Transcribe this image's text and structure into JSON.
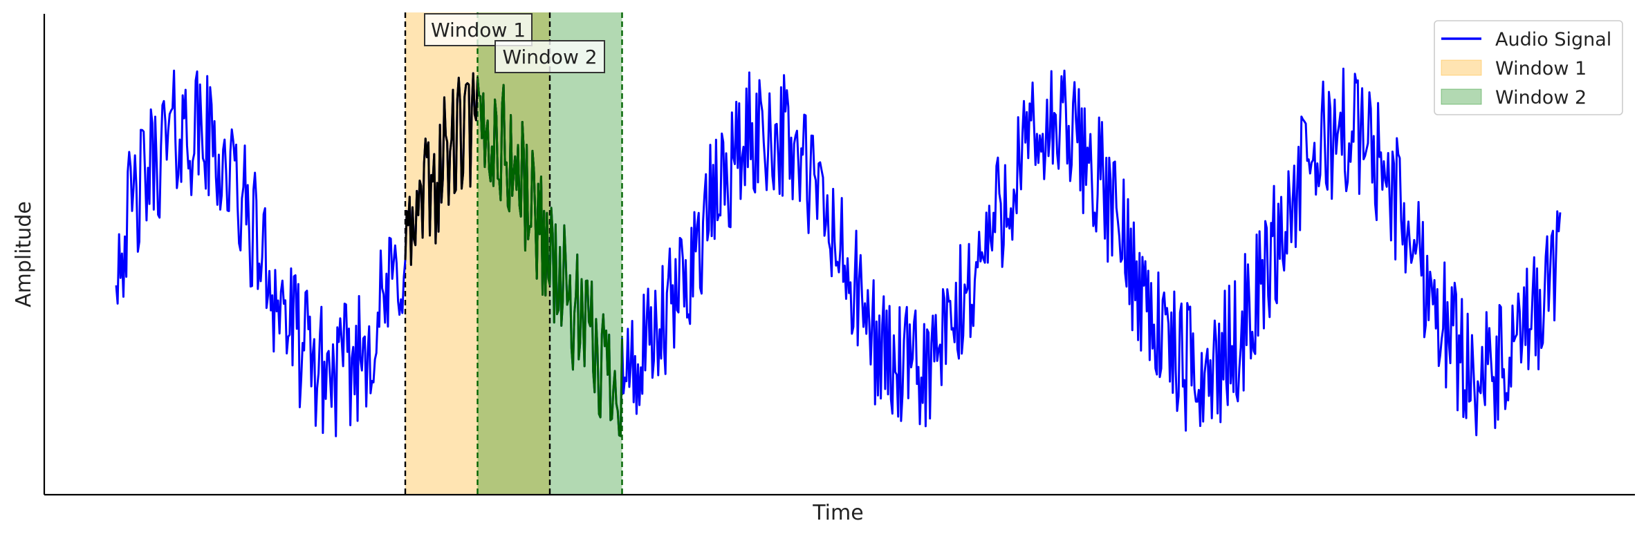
{
  "chart_data": {
    "type": "line",
    "title": "",
    "xlabel": "Time",
    "ylabel": "Amplitude",
    "ticks_visible": false,
    "grid": false,
    "legend_position": "top-right",
    "x_range": [
      0,
      1000
    ],
    "y_range": [
      -1.9,
      1.9
    ],
    "series": [
      {
        "name": "Audio Signal",
        "color": "#0000ff",
        "signal": {
          "samples": 1000,
          "cycles": 5,
          "amplitude": 1.0,
          "noise_amplitude": 0.55,
          "sample_rate_note": "sine of 5 cycles plus random noise"
        }
      }
    ],
    "windows": [
      {
        "name": "Window 1",
        "label": "Window 1",
        "x_start": 200,
        "x_end": 300,
        "fill_color": "#ffa500",
        "fill_opacity": 0.3,
        "edge_color": "#000000",
        "segment_color": "#000000"
      },
      {
        "name": "Window 2",
        "label": "Window 2",
        "x_start": 250,
        "x_end": 350,
        "fill_color": "#008000",
        "fill_opacity": 0.3,
        "edge_color": "#006400",
        "segment_color": "#006400"
      }
    ],
    "legend": [
      {
        "label": "Audio Signal",
        "kind": "line",
        "color": "#0000ff"
      },
      {
        "label": "Window 1",
        "kind": "patch",
        "color": "#ffa500"
      },
      {
        "label": "Window 2",
        "kind": "patch",
        "color": "#008000"
      }
    ]
  }
}
